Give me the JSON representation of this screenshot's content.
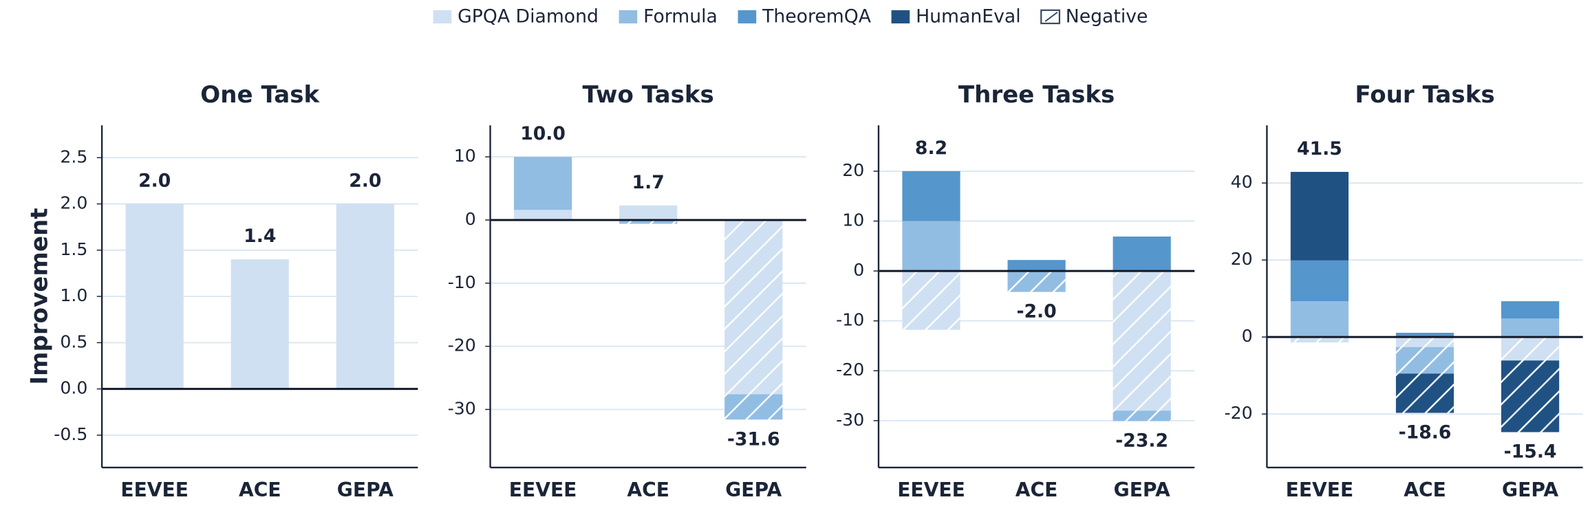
{
  "legend": {
    "items": [
      {
        "name": "GPQA Diamond",
        "color": "#cfe0f2"
      },
      {
        "name": "Formula",
        "color": "#92bde3"
      },
      {
        "name": "TheoremQA",
        "color": "#5596cc"
      },
      {
        "name": "HumanEval",
        "color": "#1f5283"
      },
      {
        "name": "Negative"
      }
    ]
  },
  "chart_data": [
    {
      "type": "bar",
      "stacked": true,
      "title": "One Task",
      "y_label": "Improvement",
      "categories": [
        "EEVEE",
        "ACE",
        "GEPA"
      ],
      "series": [
        {
          "values": [
            2.0,
            1.4,
            2.0
          ]
        },
        {
          "values": [
            0,
            0,
            0
          ]
        },
        {
          "values": [
            0,
            0,
            0
          ]
        },
        {
          "values": [
            0,
            0,
            0
          ]
        }
      ],
      "totals": {
        "values": [
          2.0,
          1.4,
          2.0
        ],
        "value_labels": [
          "2.0",
          "1.4",
          "2.0"
        ]
      },
      "ylim": [
        -0.85,
        2.85
      ],
      "yticks": [
        {
          "value": -0.5,
          "label": "-0.5"
        },
        {
          "value": 0,
          "label": "0.0"
        },
        {
          "value": 0.5,
          "label": "0.5"
        },
        {
          "value": 1,
          "label": "1.0"
        },
        {
          "value": 1.5,
          "label": "1.5"
        },
        {
          "value": 2,
          "label": "2.0"
        },
        {
          "value": 2.5,
          "label": "2.5"
        }
      ],
      "grid": true
    },
    {
      "type": "bar",
      "stacked": true,
      "title": "Two Tasks",
      "categories": [
        "EEVEE",
        "ACE",
        "GEPA"
      ],
      "series": [
        {
          "values": [
            1.6,
            2.3,
            -27.6
          ]
        },
        {
          "values": [
            8.4,
            -0.6,
            -4.0
          ]
        },
        {
          "values": [
            0,
            0,
            0
          ]
        },
        {
          "values": [
            0,
            0,
            0
          ]
        }
      ],
      "totals": {
        "values": [
          10,
          1.7,
          -31.6
        ],
        "value_labels": [
          "10.0",
          "1.7",
          "-31.6"
        ]
      },
      "ylim": [
        -39.2,
        15
      ],
      "yticks": [
        -30,
        -20,
        -10,
        0,
        10
      ],
      "grid": true
    },
    {
      "type": "bar",
      "stacked": true,
      "title": "Three Tasks",
      "categories": [
        "EEVEE",
        "ACE",
        "GEPA"
      ],
      "series": [
        {
          "values": [
            -11.8,
            0,
            -28
          ]
        },
        {
          "values": [
            10,
            -4.2,
            -2.1
          ]
        },
        {
          "values": [
            10,
            2.2,
            6.9
          ]
        },
        {
          "values": [
            0,
            0,
            0
          ]
        }
      ],
      "totals": {
        "values": [
          8.2,
          -2.0,
          -23.2
        ],
        "value_labels": [
          "8.2",
          "-2.0",
          "-23.2"
        ]
      },
      "ylim": [
        -39.4,
        29.2
      ],
      "yticks": [
        -30,
        -20,
        -10,
        0,
        10,
        20
      ],
      "grid": true
    },
    {
      "type": "bar",
      "stacked": true,
      "title": "Four Tasks",
      "categories": [
        "EEVEE",
        "ACE",
        "GEPA"
      ],
      "series": [
        {
          "values": [
            -1.4,
            -2.6,
            -6.1
          ]
        },
        {
          "values": [
            9.3,
            -6.9,
            4.8
          ]
        },
        {
          "values": [
            10.6,
            1.1,
            4.5
          ]
        },
        {
          "values": [
            23,
            -10.2,
            -18.6
          ]
        }
      ],
      "totals": {
        "values": [
          41.5,
          -18.6,
          -15.4
        ],
        "value_labels": [
          "41.5",
          "-18.6",
          "-15.4"
        ]
      },
      "ylim": [
        -33.9,
        55
      ],
      "yticks": [
        -20,
        0,
        20,
        40
      ],
      "grid": true
    }
  ]
}
